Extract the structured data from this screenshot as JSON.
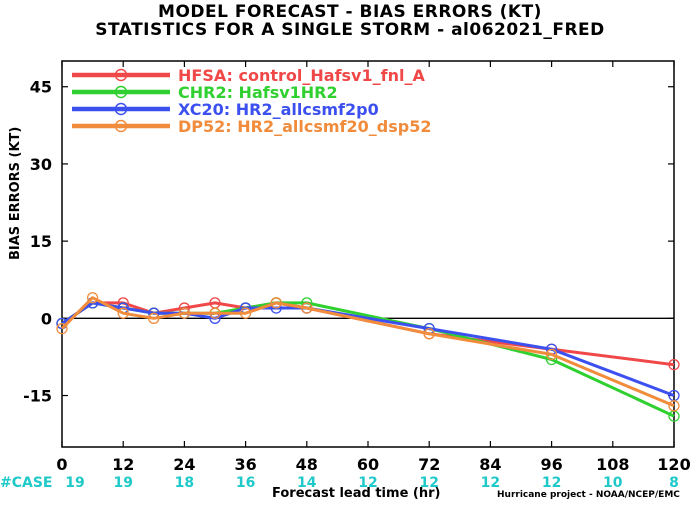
{
  "chart_data": {
    "type": "line",
    "title": "MODEL FORECAST - BIAS ERRORS (KT)",
    "subtitle": "STATISTICS FOR A SINGLE STORM - al062021_FRED",
    "xlabel": "Forecast lead time (hr)",
    "ylabel": "BIAS ERRORS (KT)",
    "xlim": [
      0,
      120
    ],
    "ylim": [
      -25,
      50
    ],
    "x_ticks": [
      0,
      12,
      24,
      36,
      48,
      60,
      72,
      84,
      96,
      108,
      120
    ],
    "y_ticks": [
      -15,
      0,
      15,
      30,
      45
    ],
    "zero_line": true,
    "grid": false,
    "legend_position": "top-left",
    "case_label": "#CASE",
    "case_x": [
      0,
      12,
      24,
      36,
      48,
      60,
      72,
      84,
      96,
      108,
      120
    ],
    "cases": [
      "19",
      "19",
      "18",
      "16",
      "14",
      "12",
      "12",
      "12",
      "12",
      "10",
      "8"
    ],
    "case_color": "#1fc9c9",
    "series": [
      {
        "name": "HFSA",
        "desc": "control_Hafsv1_fnl_A",
        "color": "#f04848",
        "x": [
          0,
          6,
          12,
          18,
          24,
          30,
          36,
          42,
          48,
          72,
          96,
          120
        ],
        "y": [
          -1,
          3,
          3,
          1,
          2,
          3,
          2,
          3,
          2,
          -3,
          -6,
          -9
        ]
      },
      {
        "name": "CHR2",
        "desc": "Hafsv1HR2",
        "color": "#2fd02f",
        "x": [
          0,
          6,
          12,
          18,
          24,
          30,
          36,
          42,
          48,
          72,
          96,
          120
        ],
        "y": [
          -1,
          3,
          2,
          1,
          1,
          1,
          2,
          3,
          3,
          -2,
          -8,
          -19
        ]
      },
      {
        "name": "XC20",
        "desc": "HR2_allcsmf2p0",
        "color": "#3c50f0",
        "x": [
          0,
          6,
          12,
          18,
          24,
          30,
          36,
          42,
          48,
          72,
          96,
          120
        ],
        "y": [
          -1,
          3,
          2,
          1,
          1,
          0,
          2,
          2,
          2,
          -2,
          -6,
          -15
        ]
      },
      {
        "name": "DP52",
        "desc": "HR2_allcsmf20_dsp52",
        "color": "#f08c3c",
        "x": [
          0,
          6,
          12,
          18,
          24,
          30,
          36,
          42,
          48,
          72,
          96,
          120
        ],
        "y": [
          -2,
          4,
          1,
          0,
          1,
          1,
          1,
          3,
          2,
          -3,
          -7,
          -17
        ]
      }
    ]
  },
  "credit": "Hurricane project - NOAA/NCEP/EMC"
}
